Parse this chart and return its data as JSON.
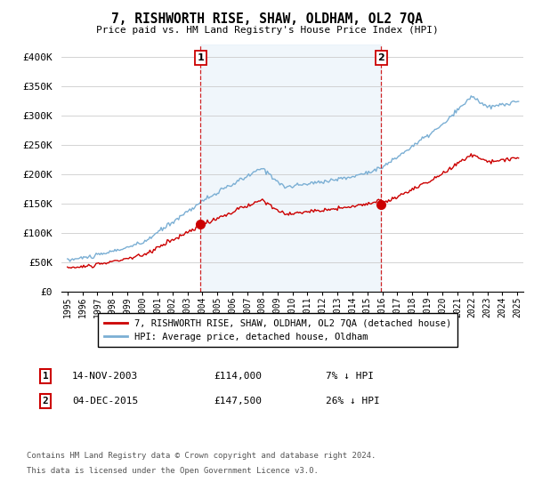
{
  "title": "7, RISHWORTH RISE, SHAW, OLDHAM, OL2 7QA",
  "subtitle": "Price paid vs. HM Land Registry's House Price Index (HPI)",
  "ylim": [
    0,
    420000
  ],
  "yticks": [
    0,
    50000,
    100000,
    150000,
    200000,
    250000,
    300000,
    350000,
    400000
  ],
  "ytick_labels": [
    "£0",
    "£50K",
    "£100K",
    "£150K",
    "£200K",
    "£250K",
    "£300K",
    "£350K",
    "£400K"
  ],
  "sale1_year": 2003.875,
  "sale1_price": 114000,
  "sale2_year": 2015.917,
  "sale2_price": 147500,
  "hpi_color": "#7bafd4",
  "price_color": "#cc0000",
  "vline_color": "#cc0000",
  "fill_color": "#d6e8f5",
  "background_color": "#ffffff",
  "grid_color": "#cccccc",
  "legend_entry1": "7, RISHWORTH RISE, SHAW, OLDHAM, OL2 7QA (detached house)",
  "legend_entry2": "HPI: Average price, detached house, Oldham",
  "footer1": "Contains HM Land Registry data © Crown copyright and database right 2024.",
  "footer2": "This data is licensed under the Open Government Licence v3.0.",
  "table_row1": [
    "1",
    "14-NOV-2003",
    "£114,000",
    "7% ↓ HPI"
  ],
  "table_row2": [
    "2",
    "04-DEC-2015",
    "£147,500",
    "26% ↓ HPI"
  ]
}
